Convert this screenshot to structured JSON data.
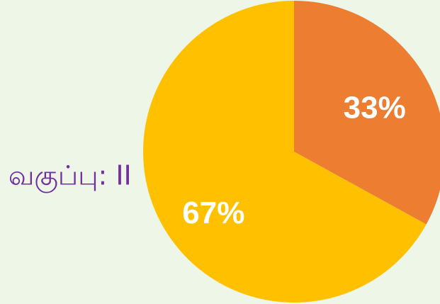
{
  "chart_data": {
    "type": "pie",
    "title": "வகுப்பு: II",
    "values": [
      33,
      67
    ],
    "value_labels": [
      "33%",
      "67%"
    ],
    "colors": [
      "#ed7d31",
      "#ffc000"
    ]
  }
}
